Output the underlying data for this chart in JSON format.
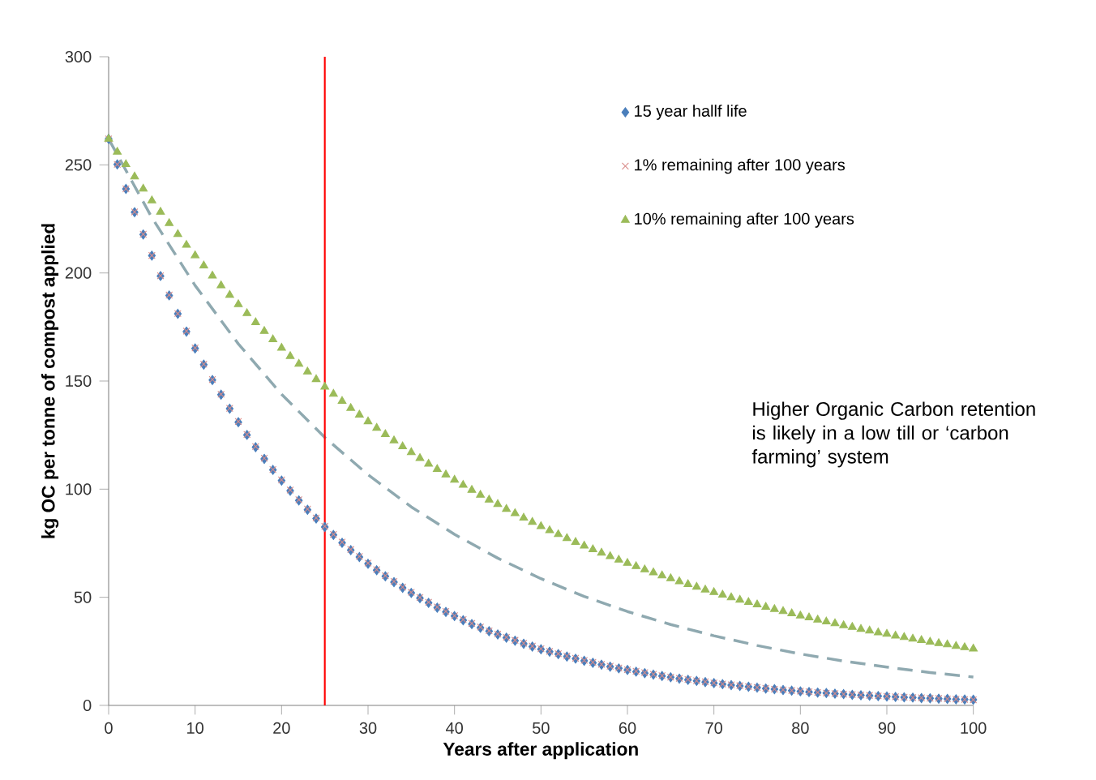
{
  "chart_data": {
    "type": "scatter",
    "xlabel": "Years after application",
    "ylabel": "kg OC per tonne of compost applied",
    "x": [
      0,
      1,
      2,
      3,
      4,
      5,
      6,
      7,
      8,
      9,
      10,
      11,
      12,
      13,
      14,
      15,
      16,
      17,
      18,
      19,
      20,
      21,
      22,
      23,
      24,
      25,
      26,
      27,
      28,
      29,
      30,
      31,
      32,
      33,
      34,
      35,
      36,
      37,
      38,
      39,
      40,
      41,
      42,
      43,
      44,
      45,
      46,
      47,
      48,
      49,
      50,
      51,
      52,
      53,
      54,
      55,
      56,
      57,
      58,
      59,
      60,
      61,
      62,
      63,
      64,
      65,
      66,
      67,
      68,
      69,
      70,
      71,
      72,
      73,
      74,
      75,
      76,
      77,
      78,
      79,
      80,
      81,
      82,
      83,
      84,
      85,
      86,
      87,
      88,
      89,
      90,
      91,
      92,
      93,
      94,
      95,
      96,
      97,
      98,
      99,
      100
    ],
    "series": [
      {
        "name": "15 year hallf life",
        "color": "#4a7ebb",
        "marker": "diamond",
        "values": [
          262,
          250.2,
          238.9,
          228.1,
          217.8,
          208.0,
          198.6,
          189.6,
          181.1,
          172.9,
          165.1,
          157.6,
          150.5,
          143.7,
          137.2,
          131.0,
          125.1,
          119.4,
          114.0,
          108.9,
          104.0,
          99.3,
          94.8,
          90.5,
          86.4,
          82.5,
          78.8,
          75.2,
          71.8,
          68.6,
          65.5,
          62.5,
          59.7,
          57.0,
          54.4,
          52.0,
          49.6,
          47.4,
          45.2,
          43.2,
          41.3,
          39.4,
          37.6,
          35.9,
          34.3,
          32.8,
          31.3,
          29.9,
          28.5,
          27.2,
          26.0,
          24.8,
          23.7,
          22.6,
          21.6,
          20.6,
          19.7,
          18.8,
          17.9,
          17.1,
          16.4,
          15.6,
          14.9,
          14.2,
          13.6,
          13.0,
          12.4,
          11.8,
          11.3,
          10.8,
          10.3,
          9.8,
          9.4,
          9.0,
          8.6,
          8.2,
          7.8,
          7.5,
          7.1,
          6.8,
          6.5,
          6.2,
          5.9,
          5.7,
          5.4,
          5.2,
          4.9,
          4.7,
          4.5,
          4.3,
          4.1,
          3.9,
          3.7,
          3.6,
          3.4,
          3.3,
          3.1,
          3.0,
          2.8,
          2.7,
          2.6
        ]
      },
      {
        "name": "1% remaining after 100 years",
        "color": "#d98c8a",
        "marker": "cross",
        "values": [
          262,
          250.2,
          238.9,
          228.2,
          217.9,
          208.1,
          198.7,
          189.8,
          181.2,
          173.1,
          165.3,
          157.8,
          150.7,
          143.9,
          137.4,
          131.3,
          125.3,
          119.7,
          114.3,
          109.1,
          104.3,
          99.6,
          95.1,
          90.8,
          86.7,
          82.8,
          79.1,
          75.5,
          72.1,
          68.9,
          65.8,
          62.8,
          60.0,
          57.3,
          54.7,
          52.3,
          49.9,
          47.7,
          45.5,
          43.5,
          41.5,
          39.7,
          37.9,
          36.2,
          34.5,
          33.0,
          31.5,
          30.1,
          28.7,
          27.4,
          26.2,
          25.0,
          23.9,
          22.8,
          21.8,
          20.8,
          19.9,
          19.0,
          18.1,
          17.3,
          16.5,
          15.8,
          15.1,
          14.4,
          13.7,
          13.1,
          12.5,
          12.0,
          11.4,
          10.9,
          10.4,
          9.9,
          9.5,
          9.1,
          8.7,
          8.3,
          7.9,
          7.5,
          7.2,
          6.9,
          6.6,
          6.3,
          6.0,
          5.7,
          5.5,
          5.2,
          5.0,
          4.8,
          4.6,
          4.4,
          4.2,
          4.0,
          3.8,
          3.6,
          3.5,
          3.3,
          3.2,
          3.0,
          2.9,
          2.7,
          2.6
        ]
      },
      {
        "name": "10% remaining after 100 years",
        "color": "#9bbb59",
        "marker": "triangle",
        "values": [
          262,
          256.0,
          250.2,
          244.5,
          238.9,
          233.5,
          228.2,
          223.0,
          217.9,
          212.9,
          208.1,
          203.4,
          198.7,
          194.2,
          189.8,
          185.5,
          181.3,
          177.1,
          173.1,
          169.2,
          165.3,
          161.5,
          157.9,
          154.3,
          150.8,
          147.3,
          144.0,
          140.7,
          137.5,
          134.4,
          131.3,
          128.3,
          125.4,
          122.5,
          119.7,
          117.0,
          114.3,
          111.7,
          109.2,
          106.7,
          104.3,
          101.9,
          99.6,
          97.3,
          95.1,
          93.0,
          90.8,
          88.8,
          86.7,
          84.8,
          82.8,
          80.9,
          79.1,
          77.3,
          75.5,
          73.8,
          72.1,
          70.5,
          68.9,
          67.3,
          65.8,
          64.3,
          62.8,
          61.4,
          60.0,
          58.7,
          57.3,
          56.0,
          54.8,
          53.5,
          52.3,
          51.1,
          49.9,
          48.8,
          47.7,
          46.6,
          45.5,
          44.5,
          43.5,
          42.5,
          41.5,
          40.6,
          39.6,
          38.7,
          37.9,
          37.0,
          36.2,
          35.3,
          34.5,
          33.7,
          33.0,
          32.2,
          31.5,
          30.8,
          30.1,
          29.4,
          28.7,
          28.1,
          27.4,
          26.8,
          26.2
        ]
      },
      {
        "type": "line",
        "color": "#8fa9b0",
        "line_style": "dashed",
        "x": [
          0,
          5,
          10,
          15,
          20,
          25,
          30,
          35,
          40,
          45,
          50,
          55,
          60,
          65,
          70,
          75,
          80,
          85,
          90,
          95,
          100
        ],
        "values": [
          262,
          225.6,
          194.2,
          167.2,
          143.9,
          123.9,
          106.7,
          91.8,
          79.1,
          68.1,
          58.6,
          50.4,
          43.4,
          37.4,
          32.2,
          27.7,
          23.8,
          20.5,
          17.7,
          15.2,
          13.1
        ]
      }
    ],
    "xlim": [
      0,
      100
    ],
    "xticks": [
      0,
      10,
      20,
      30,
      40,
      50,
      60,
      70,
      80,
      90,
      100
    ],
    "ylim": [
      0,
      300
    ],
    "yticks": [
      0,
      50,
      100,
      150,
      200,
      250,
      300
    ],
    "ref_lines": [
      {
        "axis": "x",
        "value": 25,
        "color": "#ff0000"
      }
    ],
    "annotations": [
      "Higher Organic Carbon retention is likely in a low till or ‘carbon farming’ system"
    ],
    "grid": false,
    "legend": "top right"
  }
}
